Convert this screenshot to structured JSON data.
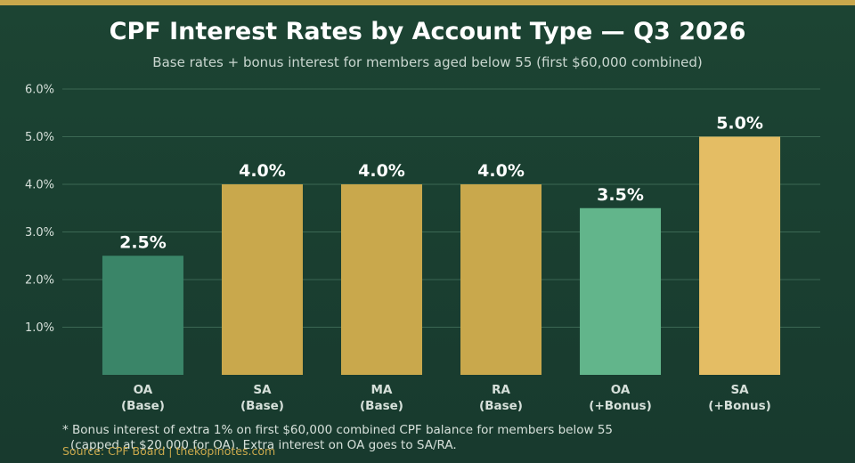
{
  "colors": {
    "accent": "#c9a84c",
    "oa_base": "#3a8568",
    "gold": "#c9a84c",
    "oa_bonus": "#62b58b",
    "sa_bonus": "#e4bd64",
    "grid": "#3b6753",
    "tick_text": "#d6e0da",
    "bar_label": "#ffffff"
  },
  "chart_data": {
    "type": "bar",
    "title": "CPF Interest Rates by Account Type — Q3 2026",
    "subtitle": "Base rates + bonus interest for members aged below 55 (first $60,000 combined)",
    "categories": [
      [
        "OA",
        "(Base)"
      ],
      [
        "SA",
        "(Base)"
      ],
      [
        "MA",
        "(Base)"
      ],
      [
        "RA",
        "(Base)"
      ],
      [
        "OA",
        "(+Bonus)"
      ],
      [
        "SA",
        "(+Bonus)"
      ]
    ],
    "values": [
      2.5,
      4.0,
      4.0,
      4.0,
      3.5,
      5.0
    ],
    "value_labels": [
      "2.5%",
      "4.0%",
      "4.0%",
      "4.0%",
      "3.5%",
      "5.0%"
    ],
    "bar_colors": [
      "#3a8568",
      "#c9a84c",
      "#c9a84c",
      "#c9a84c",
      "#62b58b",
      "#e4bd64"
    ],
    "yticks": [
      1.0,
      2.0,
      3.0,
      4.0,
      5.0,
      6.0
    ],
    "ytick_labels": [
      "1.0%",
      "2.0%",
      "3.0%",
      "4.0%",
      "5.0%",
      "6.0%"
    ],
    "ylim": [
      0,
      6.0
    ],
    "grid": true,
    "footnote": [
      "* Bonus interest of extra 1% on first $60,000 combined CPF balance for members below 55",
      "(capped at $20,000 for OA). Extra interest on OA goes to SA/RA."
    ],
    "source": "Source: CPF Board | thekopinotes.com"
  }
}
